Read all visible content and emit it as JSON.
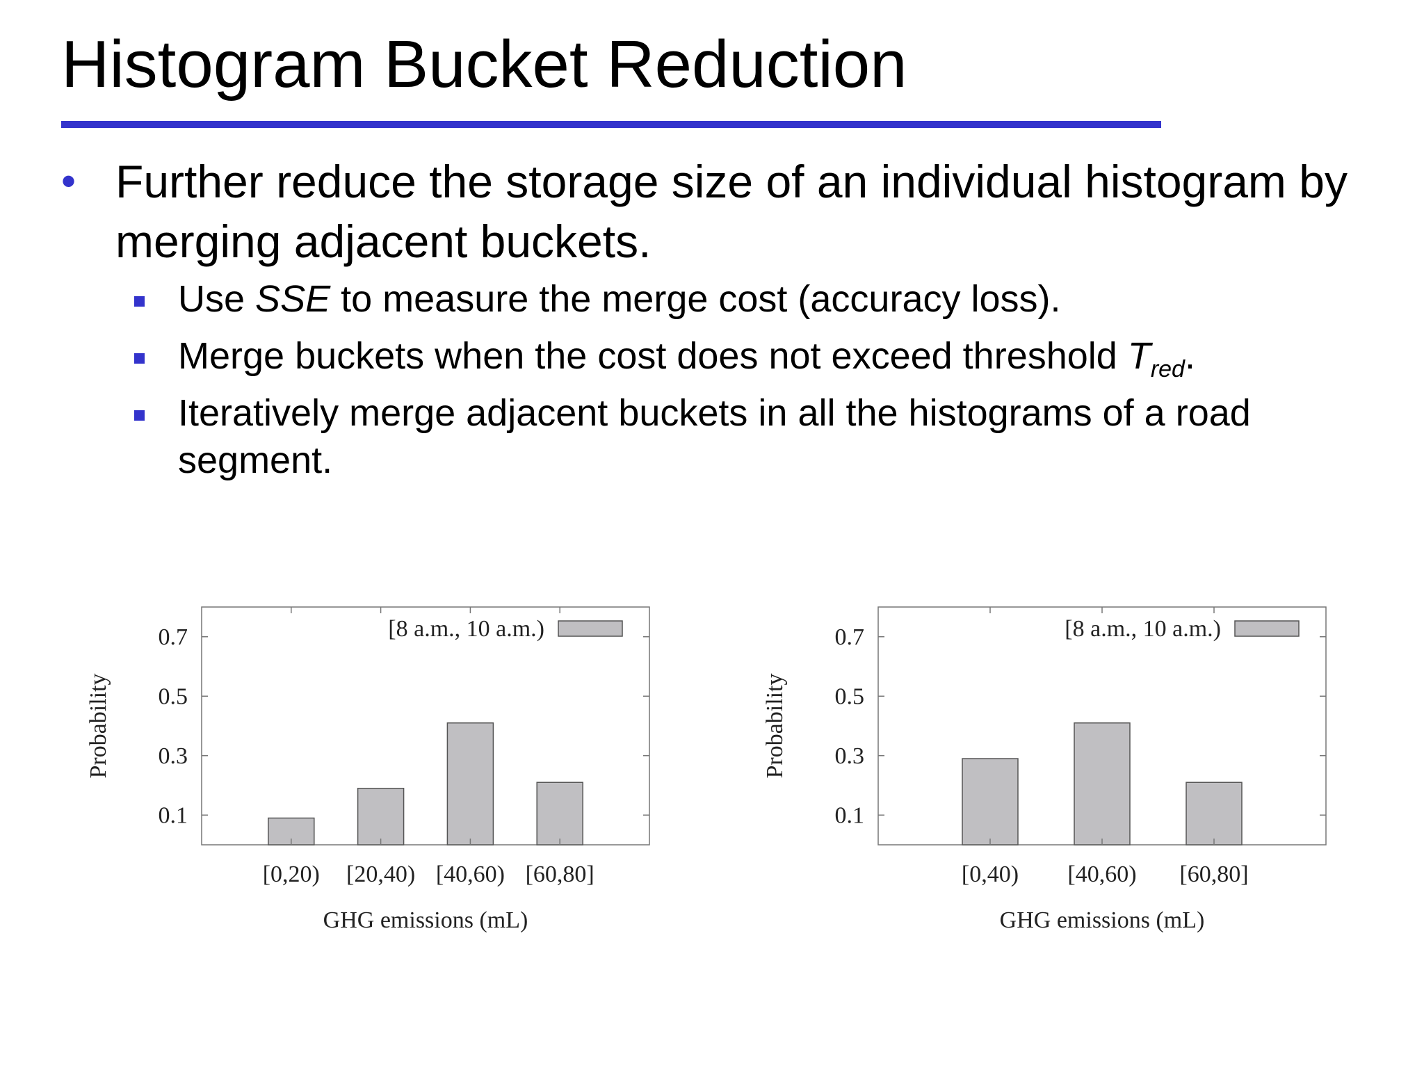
{
  "slide": {
    "title": "Histogram Bucket Reduction",
    "accent_color": "#3333cc",
    "bullets": [
      {
        "text": "Further reduce the storage size of an individual histogram by merging adjacent buckets.",
        "sub": [
          {
            "pre": "Use ",
            "em": "SSE",
            "post": " to measure the merge cost (accuracy loss)."
          },
          {
            "pre": "Merge buckets when the cost does not exceed threshold ",
            "em": "T",
            "sub": "red",
            "post": "."
          },
          {
            "pre": "Iteratively merge adjacent buckets in all the histograms of a road segment.",
            "em": "",
            "post": ""
          }
        ]
      }
    ]
  },
  "chart_data": [
    {
      "type": "bar",
      "categories": [
        "[0,20)",
        "[20,40)",
        "[40,60)",
        "[60,80]"
      ],
      "series": [
        {
          "name": "[8 a.m., 10 a.m.)",
          "values": [
            0.09,
            0.19,
            0.41,
            0.21
          ],
          "color": "#c0bfc2"
        }
      ],
      "title": "",
      "xlabel": "GHG emissions (mL)",
      "ylabel": "Probability",
      "yticks": [
        "0.1",
        "0.3",
        "0.5",
        "0.7"
      ],
      "ylim": [
        0.0,
        0.8
      ],
      "legend": "top-right",
      "grid": false
    },
    {
      "type": "bar",
      "categories": [
        "[0,40)",
        "[40,60)",
        "[60,80]"
      ],
      "series": [
        {
          "name": "[8 a.m., 10 a.m.)",
          "values": [
            0.29,
            0.41,
            0.21
          ],
          "color": "#c0bfc2"
        }
      ],
      "title": "",
      "xlabel": "GHG emissions (mL)",
      "ylabel": "Probability",
      "yticks": [
        "0.1",
        "0.3",
        "0.5",
        "0.7"
      ],
      "ylim": [
        0.0,
        0.8
      ],
      "legend": "top-right",
      "grid": false
    }
  ]
}
